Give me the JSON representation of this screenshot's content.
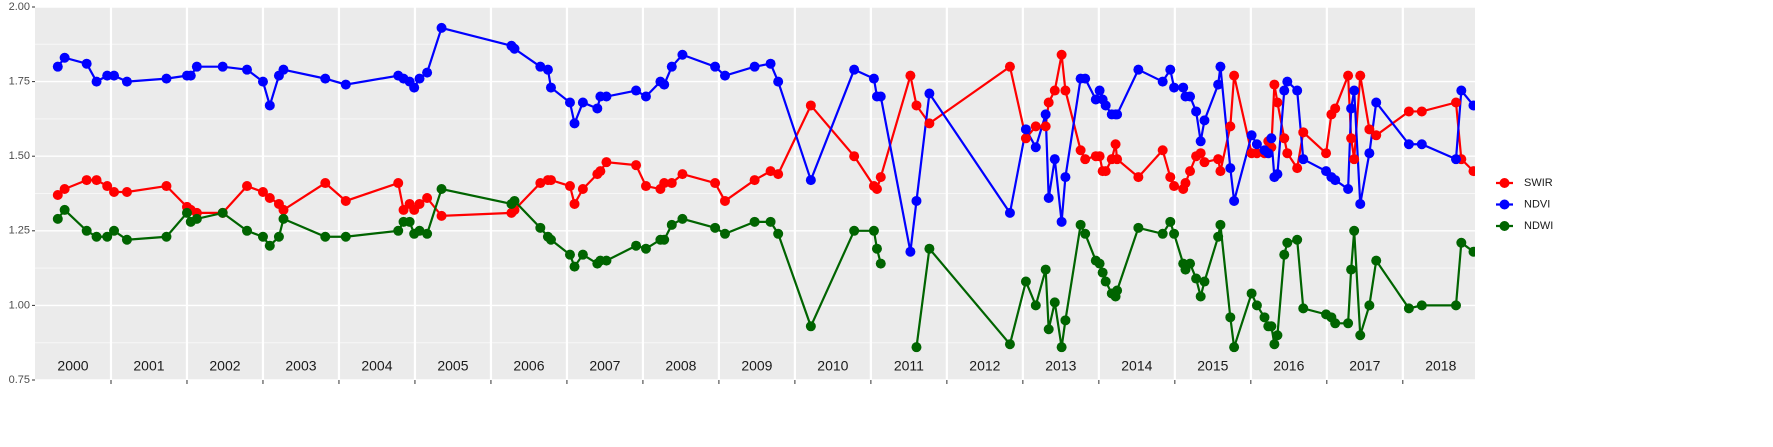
{
  "chart_data": {
    "type": "line",
    "xlim": [
      2000,
      2018.95
    ],
    "ylim": [
      0.75,
      2.0
    ],
    "yticks": [
      {
        "value": 0.75,
        "label": "0.75"
      },
      {
        "value": 1.0,
        "label": "1.00"
      },
      {
        "value": 1.25,
        "label": "1.25"
      },
      {
        "value": 1.5,
        "label": "1.50"
      },
      {
        "value": 1.75,
        "label": "1.75"
      },
      {
        "value": 2.0,
        "label": "2.00"
      }
    ],
    "xticks": [
      2001,
      2002,
      2003,
      2004,
      2005,
      2006,
      2007,
      2008,
      2009,
      2010,
      2011,
      2012,
      2013,
      2014,
      2015,
      2016,
      2017,
      2018
    ],
    "year_labels": [
      2000,
      2001,
      2002,
      2003,
      2004,
      2005,
      2006,
      2007,
      2008,
      2009,
      2010,
      2011,
      2012,
      2013,
      2014,
      2015,
      2016,
      2017,
      2018
    ],
    "grid": true,
    "legend": "right",
    "x": [
      2000.3,
      2000.39,
      2000.68,
      2000.81,
      2000.95,
      2001.04,
      2001.21,
      2001.73,
      2002.0,
      2002.05,
      2002.13,
      2002.47,
      2002.79,
      2003.0,
      2003.09,
      2003.21,
      2003.27,
      2003.82,
      2004.09,
      2004.78,
      2004.85,
      2004.93,
      2004.99,
      2005.06,
      2005.16,
      2005.35,
      2006.27,
      2006.31,
      2006.65,
      2006.75,
      2006.79,
      2007.04,
      2007.1,
      2007.21,
      2007.4,
      2007.44,
      2007.52,
      2007.91,
      2008.04,
      2008.23,
      2008.28,
      2008.38,
      2008.52,
      2008.95,
      2009.08,
      2009.47,
      2009.68,
      2009.78,
      2010.21,
      2010.78,
      2011.04,
      2011.08,
      2011.13,
      2011.52,
      2011.6,
      2011.77,
      2012.83,
      2013.04,
      2013.17,
      2013.3,
      2013.34,
      2013.42,
      2013.51,
      2013.56,
      2013.76,
      2013.82,
      2013.96,
      2014.01,
      2014.05,
      2014.09,
      2014.17,
      2014.22,
      2014.24,
      2014.52,
      2014.84,
      2014.94,
      2014.99,
      2015.11,
      2015.14,
      2015.2,
      2015.28,
      2015.34,
      2015.39,
      2015.57,
      2015.6,
      2015.73,
      2015.78,
      2016.01,
      2016.08,
      2016.18,
      2016.23,
      2016.27,
      2016.31,
      2016.35,
      2016.44,
      2016.48,
      2016.61,
      2016.69,
      2016.99,
      2017.06,
      2017.11,
      2017.28,
      2017.32,
      2017.36,
      2017.44,
      2017.56,
      2017.65,
      2018.08,
      2018.25,
      2018.7,
      2018.77,
      2018.93
    ],
    "series": [
      {
        "name": "SWIR",
        "color": "#ff0000",
        "values": [
          1.37,
          1.39,
          1.42,
          1.42,
          1.4,
          1.38,
          1.38,
          1.4,
          1.33,
          1.32,
          1.31,
          1.31,
          1.4,
          1.38,
          1.36,
          1.34,
          1.32,
          1.41,
          1.35,
          1.41,
          1.32,
          1.34,
          1.32,
          1.34,
          1.36,
          1.3,
          1.31,
          1.32,
          1.41,
          1.42,
          1.42,
          1.4,
          1.34,
          1.39,
          1.44,
          1.45,
          1.48,
          1.47,
          1.4,
          1.39,
          1.41,
          1.41,
          1.44,
          1.41,
          1.35,
          1.42,
          1.45,
          1.44,
          1.67,
          1.5,
          1.4,
          1.39,
          1.43,
          1.77,
          1.67,
          1.61,
          1.8,
          1.56,
          1.6,
          1.6,
          1.68,
          1.72,
          1.84,
          1.72,
          1.52,
          1.49,
          1.5,
          1.5,
          1.45,
          1.45,
          1.49,
          1.54,
          1.49,
          1.43,
          1.52,
          1.43,
          1.4,
          1.39,
          1.41,
          1.45,
          1.5,
          1.51,
          1.48,
          1.49,
          1.45,
          1.6,
          1.77,
          1.51,
          1.51,
          1.51,
          1.55,
          1.53,
          1.74,
          1.68,
          1.56,
          1.51,
          1.46,
          1.58,
          1.51,
          1.64,
          1.66,
          1.77,
          1.56,
          1.49,
          1.77,
          1.59,
          1.57,
          1.65,
          1.65,
          1.68,
          1.49,
          1.45
        ]
      },
      {
        "name": "NDVI",
        "color": "#0000ff",
        "values": [
          1.8,
          1.83,
          1.81,
          1.75,
          1.77,
          1.77,
          1.75,
          1.76,
          1.77,
          1.77,
          1.8,
          1.8,
          1.79,
          1.75,
          1.67,
          1.77,
          1.79,
          1.76,
          1.74,
          1.77,
          1.76,
          1.75,
          1.73,
          1.76,
          1.78,
          1.93,
          1.87,
          1.86,
          1.8,
          1.79,
          1.73,
          1.68,
          1.61,
          1.68,
          1.66,
          1.7,
          1.7,
          1.72,
          1.7,
          1.75,
          1.74,
          1.8,
          1.84,
          1.8,
          1.77,
          1.8,
          1.81,
          1.75,
          1.42,
          1.79,
          1.76,
          1.7,
          1.7,
          1.18,
          1.35,
          1.71,
          1.31,
          1.59,
          1.53,
          1.64,
          1.36,
          1.49,
          1.28,
          1.43,
          1.76,
          1.76,
          1.69,
          1.72,
          1.69,
          1.67,
          1.64,
          1.64,
          1.64,
          1.79,
          1.75,
          1.79,
          1.73,
          1.73,
          1.7,
          1.7,
          1.65,
          1.55,
          1.62,
          1.74,
          1.8,
          1.46,
          1.35,
          1.57,
          1.54,
          1.52,
          1.51,
          1.56,
          1.43,
          1.44,
          1.72,
          1.75,
          1.72,
          1.49,
          1.45,
          1.43,
          1.42,
          1.39,
          1.66,
          1.72,
          1.34,
          1.51,
          1.68,
          1.54,
          1.54,
          1.49,
          1.72,
          1.67
        ]
      },
      {
        "name": "NDWI",
        "color": "#006400",
        "values": [
          1.29,
          1.32,
          1.25,
          1.23,
          1.23,
          1.25,
          1.22,
          1.23,
          1.31,
          1.28,
          1.29,
          1.31,
          1.25,
          1.23,
          1.2,
          1.23,
          1.29,
          1.23,
          1.23,
          1.25,
          1.28,
          1.28,
          1.24,
          1.25,
          1.24,
          1.39,
          1.34,
          1.35,
          1.26,
          1.23,
          1.22,
          1.17,
          1.13,
          1.17,
          1.14,
          1.15,
          1.15,
          1.2,
          1.19,
          1.22,
          1.22,
          1.27,
          1.29,
          1.26,
          1.24,
          1.28,
          1.28,
          1.24,
          0.93,
          1.25,
          1.25,
          1.19,
          1.14,
          null,
          0.86,
          1.19,
          0.87,
          1.08,
          1.0,
          1.12,
          0.92,
          1.01,
          0.86,
          0.95,
          1.27,
          1.24,
          1.15,
          1.14,
          1.11,
          1.08,
          1.04,
          1.03,
          1.05,
          1.26,
          1.24,
          1.28,
          1.24,
          1.14,
          1.12,
          1.14,
          1.09,
          1.03,
          1.08,
          1.23,
          1.27,
          0.96,
          0.86,
          1.04,
          1.0,
          0.96,
          0.93,
          0.93,
          0.87,
          0.9,
          1.17,
          1.21,
          1.22,
          0.99,
          0.97,
          0.96,
          0.94,
          0.94,
          1.12,
          1.25,
          0.9,
          1.0,
          1.15,
          0.99,
          1.0,
          1.0,
          1.21,
          1.18
        ]
      }
    ]
  }
}
